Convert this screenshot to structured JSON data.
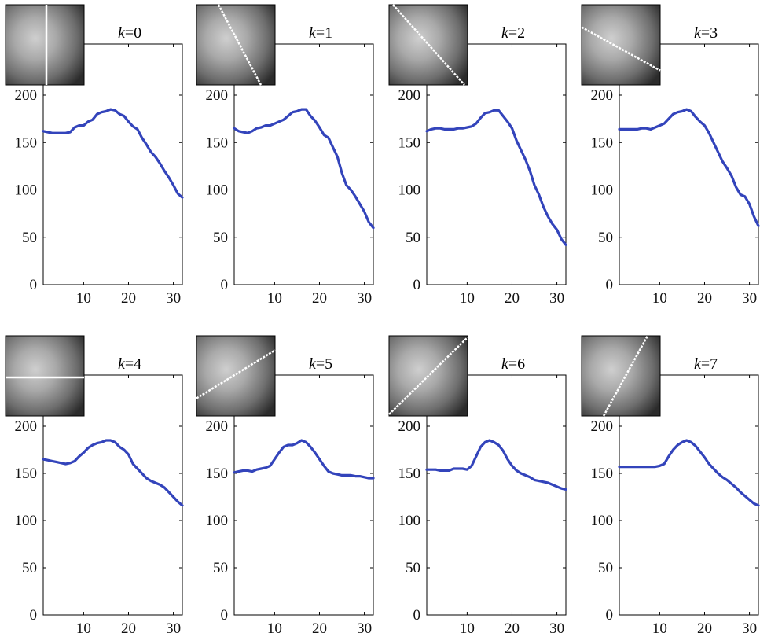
{
  "figure": {
    "background": "#ffffff"
  },
  "chart_data": [
    {
      "type": "line",
      "title": {
        "var": "k",
        "eq": "=0"
      },
      "inset": {
        "scan_line": "vertical",
        "description_icon": "patch-thumbnail"
      },
      "xlim": [
        1,
        32
      ],
      "ylim": [
        0,
        200
      ],
      "xticks": [
        10,
        20,
        30
      ],
      "yticks": [
        0,
        50,
        100,
        150,
        200
      ],
      "series": [
        {
          "color": "#3344bb",
          "x": [
            1,
            2,
            3,
            4,
            5,
            6,
            7,
            8,
            9,
            10,
            11,
            12,
            13,
            14,
            15,
            16,
            17,
            18,
            19,
            20,
            21,
            22,
            23,
            24,
            25,
            26,
            27,
            28,
            29,
            30,
            31,
            32
          ],
          "values": [
            162,
            161,
            160,
            160,
            160,
            160,
            161,
            166,
            168,
            168,
            172,
            174,
            180,
            182,
            183,
            185,
            184,
            180,
            178,
            172,
            167,
            164,
            155,
            148,
            140,
            135,
            128,
            120,
            113,
            105,
            96,
            92
          ]
        }
      ]
    },
    {
      "type": "line",
      "title": {
        "var": "k",
        "eq": "=1"
      },
      "inset": {
        "scan_line": "steep-diagonal-down",
        "description_icon": "patch-thumbnail"
      },
      "xlim": [
        1,
        32
      ],
      "ylim": [
        0,
        200
      ],
      "xticks": [
        10,
        20,
        30
      ],
      "yticks": [
        0,
        50,
        100,
        150,
        200
      ],
      "series": [
        {
          "color": "#3344bb",
          "x": [
            1,
            2,
            3,
            4,
            5,
            6,
            7,
            8,
            9,
            10,
            11,
            12,
            13,
            14,
            15,
            16,
            17,
            18,
            19,
            20,
            21,
            22,
            23,
            24,
            25,
            26,
            27,
            28,
            29,
            30,
            31,
            32
          ],
          "values": [
            165,
            162,
            161,
            160,
            162,
            165,
            166,
            168,
            168,
            170,
            172,
            174,
            178,
            182,
            183,
            185,
            185,
            178,
            173,
            166,
            158,
            155,
            145,
            135,
            118,
            105,
            100,
            93,
            85,
            77,
            66,
            60
          ]
        }
      ]
    },
    {
      "type": "line",
      "title": {
        "var": "k",
        "eq": "=2"
      },
      "inset": {
        "scan_line": "diagonal-down",
        "description_icon": "patch-thumbnail"
      },
      "xlim": [
        1,
        32
      ],
      "ylim": [
        0,
        200
      ],
      "xticks": [
        10,
        20,
        30
      ],
      "yticks": [
        0,
        50,
        100,
        150,
        200
      ],
      "series": [
        {
          "color": "#3344bb",
          "x": [
            1,
            2,
            3,
            4,
            5,
            6,
            7,
            8,
            9,
            10,
            11,
            12,
            13,
            14,
            15,
            16,
            17,
            18,
            19,
            20,
            21,
            22,
            23,
            24,
            25,
            26,
            27,
            28,
            29,
            30,
            31,
            32
          ],
          "values": [
            162,
            164,
            165,
            165,
            164,
            164,
            164,
            165,
            165,
            166,
            167,
            170,
            176,
            181,
            182,
            184,
            184,
            178,
            172,
            165,
            152,
            142,
            132,
            120,
            105,
            95,
            82,
            72,
            64,
            58,
            48,
            42
          ]
        }
      ]
    },
    {
      "type": "line",
      "title": {
        "var": "k",
        "eq": "=3"
      },
      "inset": {
        "scan_line": "shallow-diagonal-down",
        "description_icon": "patch-thumbnail"
      },
      "xlim": [
        1,
        32
      ],
      "ylim": [
        0,
        200
      ],
      "xticks": [
        10,
        20,
        30
      ],
      "yticks": [
        0,
        50,
        100,
        150,
        200
      ],
      "series": [
        {
          "color": "#3344bb",
          "x": [
            1,
            2,
            3,
            4,
            5,
            6,
            7,
            8,
            9,
            10,
            11,
            12,
            13,
            14,
            15,
            16,
            17,
            18,
            19,
            20,
            21,
            22,
            23,
            24,
            25,
            26,
            27,
            28,
            29,
            30,
            31,
            32
          ],
          "values": [
            164,
            164,
            164,
            164,
            164,
            165,
            165,
            164,
            166,
            168,
            170,
            175,
            180,
            182,
            183,
            185,
            183,
            177,
            172,
            168,
            160,
            150,
            140,
            130,
            123,
            115,
            103,
            95,
            93,
            85,
            72,
            62
          ]
        }
      ]
    },
    {
      "type": "line",
      "title": {
        "var": "k",
        "eq": "=4"
      },
      "inset": {
        "scan_line": "horizontal",
        "description_icon": "patch-thumbnail"
      },
      "xlim": [
        1,
        32
      ],
      "ylim": [
        0,
        200
      ],
      "xticks": [
        10,
        20,
        30
      ],
      "yticks": [
        0,
        50,
        100,
        150,
        200
      ],
      "series": [
        {
          "color": "#3344bb",
          "x": [
            1,
            2,
            3,
            4,
            5,
            6,
            7,
            8,
            9,
            10,
            11,
            12,
            13,
            14,
            15,
            16,
            17,
            18,
            19,
            20,
            21,
            22,
            23,
            24,
            25,
            26,
            27,
            28,
            29,
            30,
            31,
            32
          ],
          "values": [
            165,
            164,
            163,
            162,
            161,
            160,
            161,
            163,
            168,
            172,
            177,
            180,
            182,
            183,
            185,
            185,
            183,
            178,
            175,
            170,
            160,
            155,
            150,
            145,
            142,
            140,
            138,
            135,
            130,
            125,
            120,
            116
          ]
        }
      ]
    },
    {
      "type": "line",
      "title": {
        "var": "k",
        "eq": "=5"
      },
      "inset": {
        "scan_line": "diagonal-up",
        "description_icon": "patch-thumbnail"
      },
      "xlim": [
        1,
        32
      ],
      "ylim": [
        0,
        200
      ],
      "xticks": [
        10,
        20,
        30
      ],
      "yticks": [
        0,
        50,
        100,
        150,
        200
      ],
      "series": [
        {
          "color": "#3344bb",
          "x": [
            1,
            2,
            3,
            4,
            5,
            6,
            7,
            8,
            9,
            10,
            11,
            12,
            13,
            14,
            15,
            16,
            17,
            18,
            19,
            20,
            21,
            22,
            23,
            24,
            25,
            26,
            27,
            28,
            29,
            30,
            31,
            32
          ],
          "values": [
            151,
            152,
            153,
            153,
            152,
            154,
            155,
            156,
            158,
            165,
            172,
            178,
            180,
            180,
            182,
            185,
            183,
            178,
            172,
            165,
            158,
            152,
            150,
            149,
            148,
            148,
            148,
            147,
            147,
            146,
            145,
            145
          ]
        }
      ]
    },
    {
      "type": "line",
      "title": {
        "var": "k",
        "eq": "=6"
      },
      "inset": {
        "scan_line": "steep-diagonal-up",
        "description_icon": "patch-thumbnail"
      },
      "xlim": [
        1,
        32
      ],
      "ylim": [
        0,
        200
      ],
      "xticks": [
        10,
        20,
        30
      ],
      "yticks": [
        0,
        50,
        100,
        150,
        200
      ],
      "series": [
        {
          "color": "#3344bb",
          "x": [
            1,
            2,
            3,
            4,
            5,
            6,
            7,
            8,
            9,
            10,
            11,
            12,
            13,
            14,
            15,
            16,
            17,
            18,
            19,
            20,
            21,
            22,
            23,
            24,
            25,
            26,
            27,
            28,
            29,
            30,
            31,
            32
          ],
          "values": [
            154,
            154,
            154,
            153,
            153,
            153,
            155,
            155,
            155,
            154,
            158,
            168,
            178,
            183,
            185,
            183,
            180,
            174,
            165,
            158,
            153,
            150,
            148,
            146,
            143,
            142,
            141,
            140,
            138,
            136,
            134,
            133
          ]
        }
      ]
    },
    {
      "type": "line",
      "title": {
        "var": "k",
        "eq": "=7"
      },
      "inset": {
        "scan_line": "very-steep-diagonal-up",
        "description_icon": "patch-thumbnail"
      },
      "xlim": [
        1,
        32
      ],
      "ylim": [
        0,
        200
      ],
      "xticks": [
        10,
        20,
        30
      ],
      "yticks": [
        0,
        50,
        100,
        150,
        200
      ],
      "series": [
        {
          "color": "#3344bb",
          "x": [
            1,
            2,
            3,
            4,
            5,
            6,
            7,
            8,
            9,
            10,
            11,
            12,
            13,
            14,
            15,
            16,
            17,
            18,
            19,
            20,
            21,
            22,
            23,
            24,
            25,
            26,
            27,
            28,
            29,
            30,
            31,
            32
          ],
          "values": [
            157,
            157,
            157,
            157,
            157,
            157,
            157,
            157,
            157,
            158,
            160,
            168,
            175,
            180,
            183,
            185,
            183,
            179,
            173,
            167,
            160,
            155,
            150,
            146,
            143,
            139,
            135,
            130,
            126,
            122,
            118,
            116
          ]
        }
      ]
    }
  ]
}
